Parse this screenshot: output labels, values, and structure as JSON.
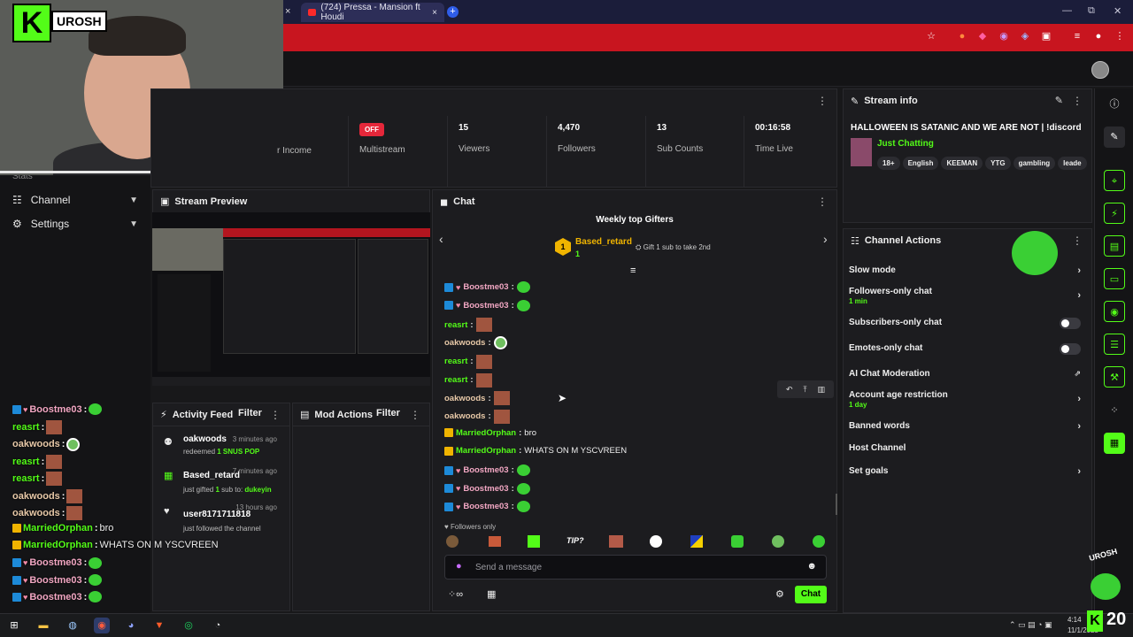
{
  "browser": {
    "tab_title": "(724) Pressa - Mansion ft Houdi",
    "close_glyph": "×",
    "plus_glyph": "+",
    "win_minimize": "—",
    "win_restore": "⧉",
    "win_close": "✕"
  },
  "webcam": {
    "logo_letter": "K",
    "logo_text": "UROSH"
  },
  "sidebar": {
    "partial_item": "Stats",
    "items": [
      {
        "label": "Channel",
        "icon": "channel-icon"
      },
      {
        "label": "Settings",
        "icon": "gear-icon"
      }
    ]
  },
  "stats": {
    "income_label": "r Income",
    "multistream_badge": "OFF",
    "multistream_label": "Multistream",
    "viewers_value": "15",
    "viewers_label": "Viewers",
    "followers_value": "4,470",
    "followers_label": "Followers",
    "subs_value": "13",
    "subs_label": "Sub Counts",
    "time_value": "00:16:58",
    "time_label": "Time Live"
  },
  "preview": {
    "title": "Stream Preview"
  },
  "activity": {
    "title": "Activity Feed",
    "filter_label": "Filter",
    "items": [
      {
        "name": "oakwoods",
        "time": "3 minutes ago",
        "sub_pre": "redeemed ",
        "sub_highlight": "1 SNUS POP"
      },
      {
        "name": "Based_retard",
        "time": "7 minutes ago",
        "sub_pre": "just gifted ",
        "sub_mid": "1",
        "sub_post": " sub to: ",
        "sub_highlight": "dukeyin"
      },
      {
        "name": "user8171711818",
        "time": "13 hours ago",
        "sub_pre": "just followed the channel"
      }
    ]
  },
  "modactions": {
    "title": "Mod Actions",
    "filter_label": "Filter"
  },
  "chat": {
    "title": "Chat",
    "weekly_title": "Weekly top Gifters",
    "gifter_rank": "1",
    "gifter_name": "Based_retard",
    "gifter_count": "1",
    "gift_hint": "Gift 1 sub to take 2nd",
    "messages": [
      {
        "user": "Boostme03",
        "color": "#f2a7c3",
        "text": "",
        "badges": "bh",
        "emote": "g"
      },
      {
        "user": "Boostme03",
        "color": "#f2a7c3",
        "text": "",
        "badges": "bh",
        "emote": "g"
      },
      {
        "user": "reasrt",
        "color": "#53fc18",
        "text": "",
        "badges": "",
        "emote": "img"
      },
      {
        "user": "oakwoods",
        "color": "#e8c9a8",
        "text": "",
        "badges": "",
        "emote": "o"
      },
      {
        "user": "reasrt",
        "color": "#53fc18",
        "text": "",
        "badges": "",
        "emote": "img"
      },
      {
        "user": "reasrt",
        "color": "#53fc18",
        "text": "",
        "badges": "",
        "emote": "img"
      },
      {
        "user": "oakwoods",
        "color": "#e8c9a8",
        "text": "",
        "badges": "",
        "emote": "img"
      },
      {
        "user": "oakwoods",
        "color": "#e8c9a8",
        "text": "",
        "badges": "",
        "emote": "img"
      },
      {
        "user": "MarriedOrphan",
        "color": "#53fc18",
        "text": "bro",
        "badges": "gold",
        "emote": ""
      },
      {
        "user": "MarriedOrphan",
        "color": "#53fc18",
        "text": "WHATS ON M YSCVREEN",
        "badges": "gold",
        "emote": ""
      },
      {
        "user": "Boostme03",
        "color": "#f2a7c3",
        "text": "",
        "badges": "bh",
        "emote": "g"
      },
      {
        "user": "Boostme03",
        "color": "#f2a7c3",
        "text": "",
        "badges": "bh",
        "emote": "g"
      },
      {
        "user": "Boostme03",
        "color": "#f2a7c3",
        "text": "",
        "badges": "bh",
        "emote": "g"
      }
    ],
    "followers_only": "Followers only",
    "emote_tip": "TIP?",
    "input_placeholder": "Send a message",
    "send_label": "Chat"
  },
  "overlay_chat": [
    {
      "user": "Boostme03",
      "color": "#f2a7c3",
      "text": "",
      "emote": "g",
      "badges": "bh"
    },
    {
      "user": "reasrt",
      "color": "#53fc18",
      "text": "",
      "emote": "img",
      "badges": ""
    },
    {
      "user": "oakwoods",
      "color": "#e8c9a8",
      "text": "",
      "emote": "o",
      "badges": ""
    },
    {
      "user": "reasrt",
      "color": "#53fc18",
      "text": "",
      "emote": "img",
      "badges": ""
    },
    {
      "user": "reasrt",
      "color": "#53fc18",
      "text": "",
      "emote": "img",
      "badges": ""
    },
    {
      "user": "oakwoods",
      "color": "#e8c9a8",
      "text": "",
      "emote": "img",
      "badges": ""
    },
    {
      "user": "oakwoods",
      "color": "#e8c9a8",
      "text": "",
      "emote": "img",
      "badges": ""
    },
    {
      "user": "MarriedOrphan",
      "color": "#53fc18",
      "text": "bro",
      "emote": "",
      "badges": "gold"
    },
    {
      "user": "MarriedOrphan",
      "color": "#53fc18",
      "text": "WHATS ON M YSCVREEN",
      "emote": "",
      "badges": "gold"
    },
    {
      "user": "Boostme03",
      "color": "#f2a7c3",
      "text": "",
      "emote": "g",
      "badges": "bh"
    },
    {
      "user": "Boostme03",
      "color": "#f2a7c3",
      "text": "",
      "emote": "g",
      "badges": "bh"
    },
    {
      "user": "Boostme03",
      "color": "#f2a7c3",
      "text": "",
      "emote": "g",
      "badges": "bh"
    }
  ],
  "stream_info": {
    "title": "Stream info",
    "stream_title": "HALLOWEEN IS SATANIC AND WE ARE NOT | !discord",
    "category": "Just Chatting",
    "tags": [
      "18+",
      "English",
      "KEEMAN",
      "YTG",
      "gambling",
      "leade"
    ]
  },
  "channel_actions": {
    "title": "Channel Actions",
    "items": [
      {
        "label": "Slow mode",
        "sub": "",
        "control": "chevron"
      },
      {
        "label": "Followers-only chat",
        "sub": "1 min",
        "control": "chevron"
      },
      {
        "label": "Subscribers-only chat",
        "sub": "",
        "control": "toggle"
      },
      {
        "label": "Emotes-only chat",
        "sub": "",
        "control": "toggle"
      },
      {
        "label": "AI Chat Moderation",
        "sub": "",
        "control": "external"
      },
      {
        "label": "Account age restriction",
        "sub": "1 day",
        "control": "chevron"
      },
      {
        "label": "Banned words",
        "sub": "",
        "control": "chevron"
      },
      {
        "label": "Host Channel",
        "sub": "",
        "control": "none"
      },
      {
        "label": "Set goals",
        "sub": "",
        "control": "chevron"
      }
    ]
  },
  "taskbar": {
    "time": "4:14",
    "date": "11/1/2025",
    "overlay_counter": "20",
    "overlay_logo_text": "UROSH"
  },
  "colors": {
    "accent": "#53fc18",
    "tab_bar": "#1b1d3a",
    "address_bar": "#c8151f",
    "offline_badge": "#e5273a"
  }
}
